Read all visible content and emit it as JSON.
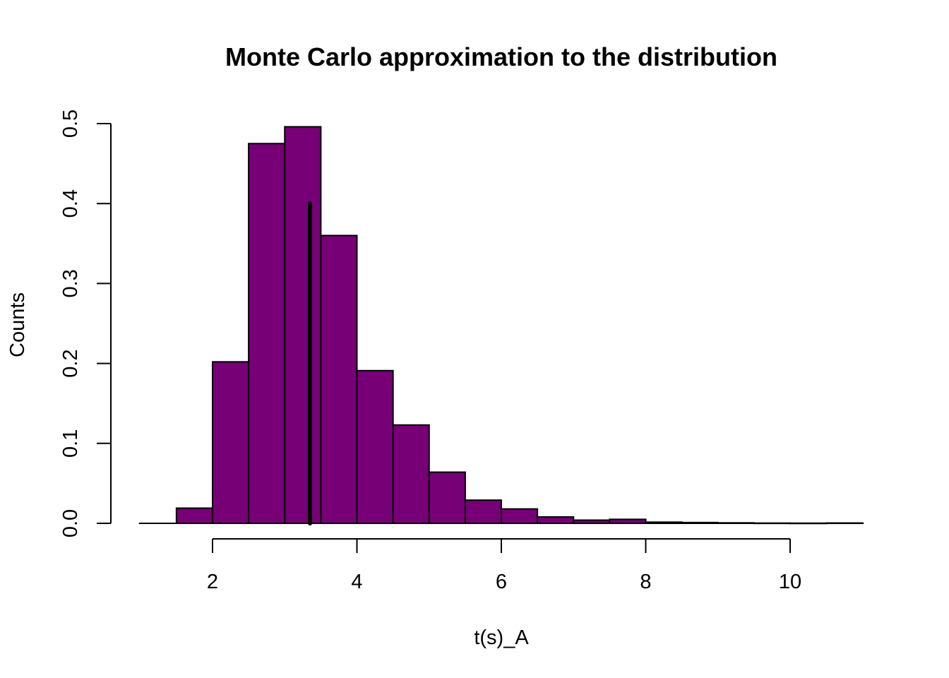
{
  "chart_data": {
    "type": "bar",
    "title": "Monte Carlo approximation to the distribution",
    "xlabel": "t(s)_A",
    "ylabel": "Counts",
    "bar_color": "#770077",
    "bins": [
      {
        "x0": 1.5,
        "x1": 2.0,
        "value": 0.019
      },
      {
        "x0": 2.0,
        "x1": 2.5,
        "value": 0.202
      },
      {
        "x0": 2.5,
        "x1": 3.0,
        "value": 0.475
      },
      {
        "x0": 3.0,
        "x1": 3.5,
        "value": 0.496
      },
      {
        "x0": 3.5,
        "x1": 4.0,
        "value": 0.36
      },
      {
        "x0": 4.0,
        "x1": 4.5,
        "value": 0.191
      },
      {
        "x0": 4.5,
        "x1": 5.0,
        "value": 0.123
      },
      {
        "x0": 5.0,
        "x1": 5.5,
        "value": 0.064
      },
      {
        "x0": 5.5,
        "x1": 6.0,
        "value": 0.029
      },
      {
        "x0": 6.0,
        "x1": 6.5,
        "value": 0.018
      },
      {
        "x0": 6.5,
        "x1": 7.0,
        "value": 0.008
      },
      {
        "x0": 7.0,
        "x1": 7.5,
        "value": 0.004
      },
      {
        "x0": 7.5,
        "x1": 8.0,
        "value": 0.005
      },
      {
        "x0": 8.0,
        "x1": 8.5,
        "value": 0.0015
      },
      {
        "x0": 8.5,
        "x1": 9.0,
        "value": 0.001
      },
      {
        "x0": 9.0,
        "x1": 9.5,
        "value": 0.0006
      },
      {
        "x0": 9.5,
        "x1": 10.0,
        "value": 0.0003
      },
      {
        "x0": 10.0,
        "x1": 10.5,
        "value": 0.0002
      },
      {
        "x0": 10.5,
        "x1": 11.0,
        "value": 0.0004
      }
    ],
    "observed_line": {
      "x": 3.35,
      "y0": 0.0,
      "y1": 0.4,
      "color": "#000000"
    },
    "xlim": [
      1.0,
      11.0
    ],
    "ylim": [
      0.0,
      0.5
    ],
    "x_ticks": [
      2,
      4,
      6,
      8,
      10
    ],
    "x_tick_labels": [
      "2",
      "4",
      "6",
      "8",
      "10"
    ],
    "y_ticks": [
      0.0,
      0.1,
      0.2,
      0.3,
      0.4,
      0.5
    ],
    "y_tick_labels": [
      "0.0",
      "0.1",
      "0.2",
      "0.3",
      "0.4",
      "0.5"
    ],
    "grid": false,
    "legend": "none"
  }
}
